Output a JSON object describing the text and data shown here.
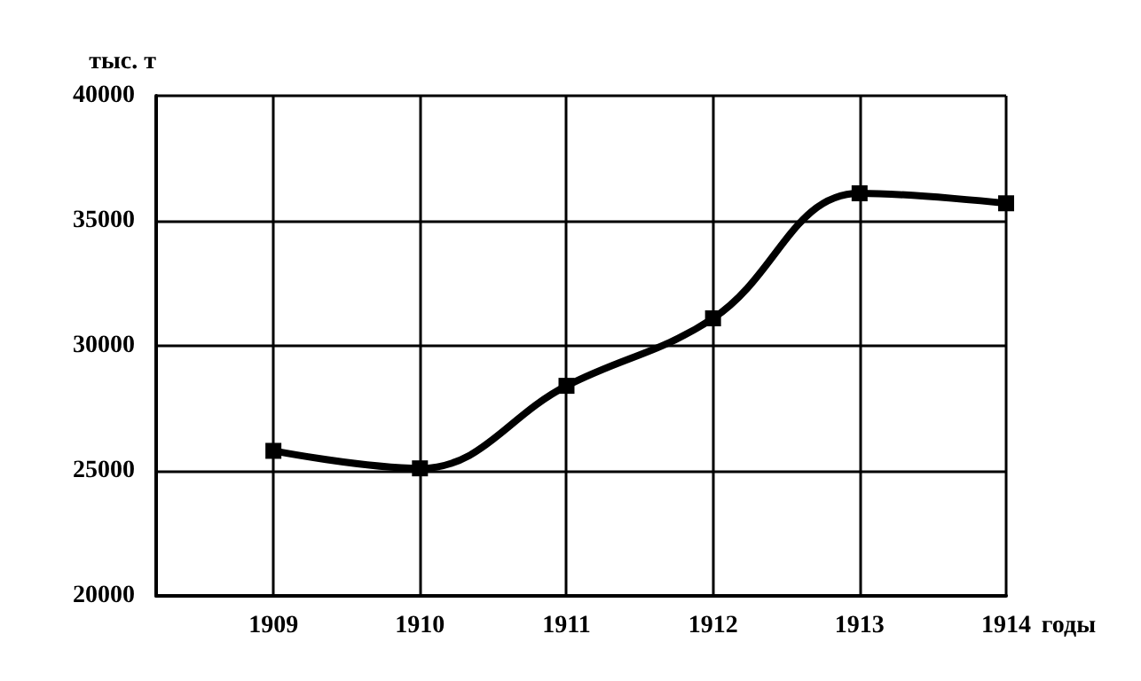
{
  "chart_data": {
    "type": "line",
    "xlabel": "годы",
    "ylabel": "тыс. т",
    "x": [
      1909,
      1910,
      1911,
      1912,
      1913,
      1914
    ],
    "values": [
      25800,
      25100,
      28400,
      31100,
      36100,
      35700
    ],
    "color": "#000000",
    "xlim": [
      1908.2,
      1914
    ],
    "xticks": [
      1909,
      1910,
      1911,
      1912,
      1913,
      1914
    ],
    "ylim": [
      20000,
      40000
    ],
    "yticks": [
      20000,
      25000,
      30000,
      35000,
      40000
    ],
    "grid": true,
    "marker": "square",
    "line_style": "solid"
  }
}
